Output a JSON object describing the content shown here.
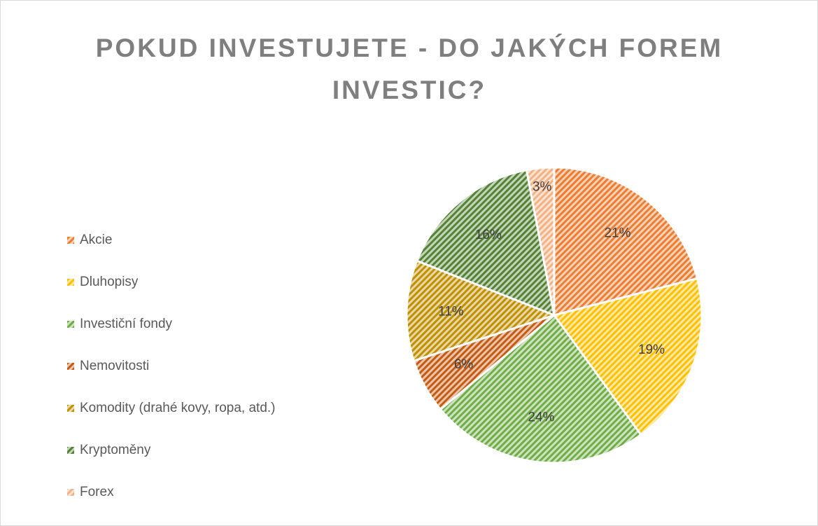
{
  "chart_data": {
    "type": "pie",
    "title": "POKUD INVESTUJETE - DO JAKÝCH FOREM INVESTIC?",
    "categories": [
      "Akcie",
      "Dluhopisy",
      "Investiční fondy",
      "Nemovitosti",
      "Komodity (drahé kovy, ropa, atd.)",
      "Kryptoměny",
      "Forex"
    ],
    "values": [
      21,
      19,
      24,
      6,
      11,
      16,
      3
    ],
    "value_labels": [
      "21%",
      "19%",
      "24%",
      "6%",
      "11%",
      "16%",
      "3%"
    ],
    "colors": [
      "#ED7D31",
      "#FFC000",
      "#70AD47",
      "#C55A11",
      "#BF9000",
      "#548235",
      "#F4B183"
    ],
    "legend": "left"
  }
}
